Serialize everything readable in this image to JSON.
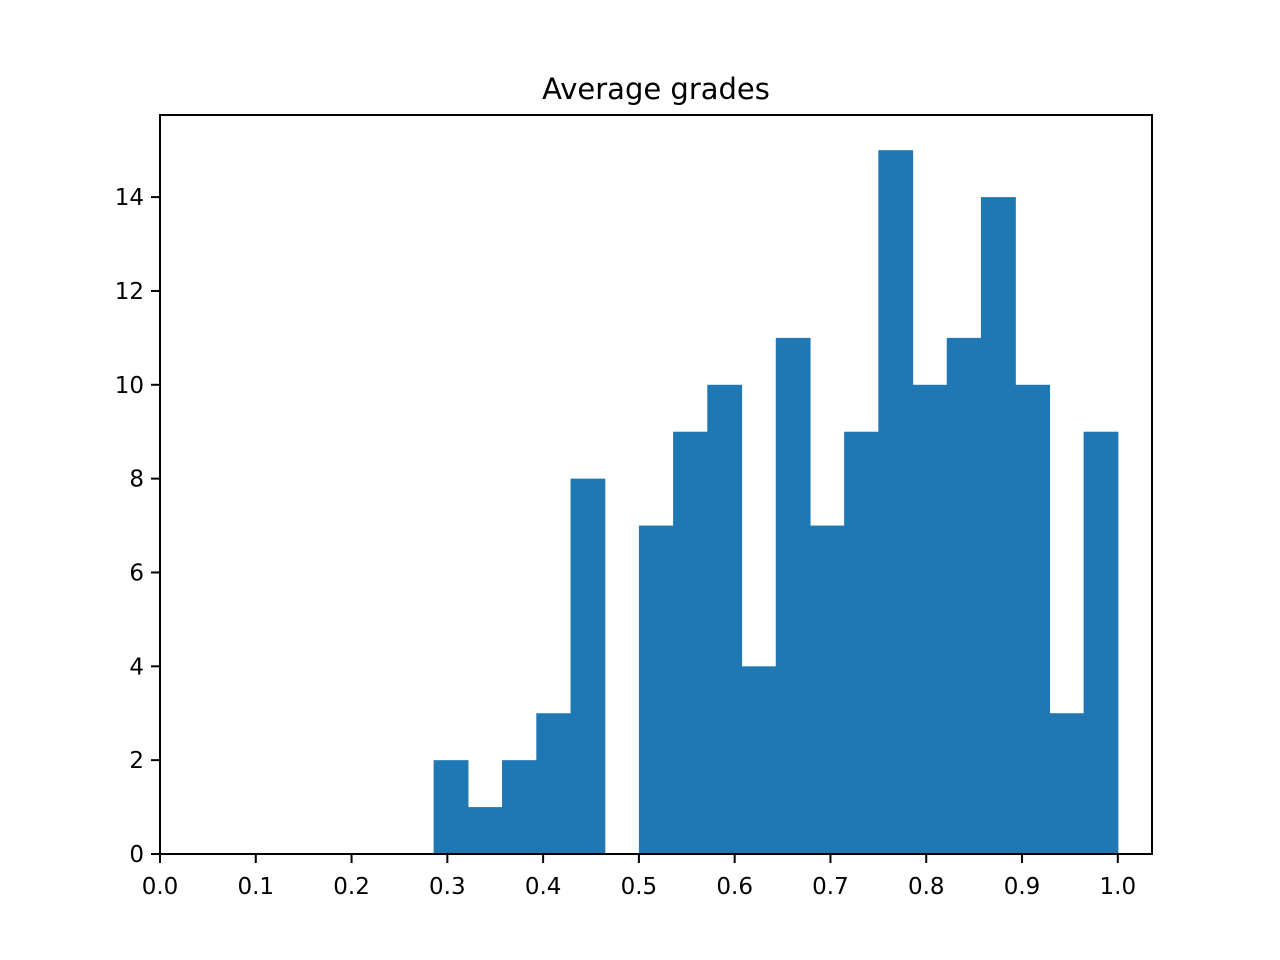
{
  "chart_data": {
    "type": "bar",
    "title": "Average grades",
    "xlabel": "",
    "ylabel": "",
    "xlim": [
      0.0,
      1.0357
    ],
    "ylim": [
      0,
      15.75
    ],
    "bin_edges": [
      0.2857,
      0.3214,
      0.3571,
      0.3929,
      0.4286,
      0.4643,
      0.5,
      0.5357,
      0.5714,
      0.6071,
      0.6429,
      0.6786,
      0.7143,
      0.75,
      0.7857,
      0.8214,
      0.8571,
      0.8929,
      0.9286,
      0.9643,
      1.0
    ],
    "values": [
      2,
      1,
      2,
      3,
      8,
      0,
      7,
      9,
      10,
      4,
      11,
      7,
      9,
      15,
      10,
      11,
      14,
      10,
      3,
      9
    ],
    "x_ticks": [
      {
        "value": 0.0,
        "label": "0.0"
      },
      {
        "value": 0.1,
        "label": "0.1"
      },
      {
        "value": 0.2,
        "label": "0.2"
      },
      {
        "value": 0.3,
        "label": "0.3"
      },
      {
        "value": 0.4,
        "label": "0.4"
      },
      {
        "value": 0.5,
        "label": "0.5"
      },
      {
        "value": 0.6,
        "label": "0.6"
      },
      {
        "value": 0.7,
        "label": "0.7"
      },
      {
        "value": 0.8,
        "label": "0.8"
      },
      {
        "value": 0.9,
        "label": "0.9"
      },
      {
        "value": 1.0,
        "label": "1.0"
      }
    ],
    "y_ticks": [
      {
        "value": 0,
        "label": "0"
      },
      {
        "value": 2,
        "label": "2"
      },
      {
        "value": 4,
        "label": "4"
      },
      {
        "value": 6,
        "label": "6"
      },
      {
        "value": 8,
        "label": "8"
      },
      {
        "value": 10,
        "label": "10"
      },
      {
        "value": 12,
        "label": "12"
      },
      {
        "value": 14,
        "label": "14"
      }
    ],
    "grid": false,
    "bar_color": "#1f77b4"
  }
}
